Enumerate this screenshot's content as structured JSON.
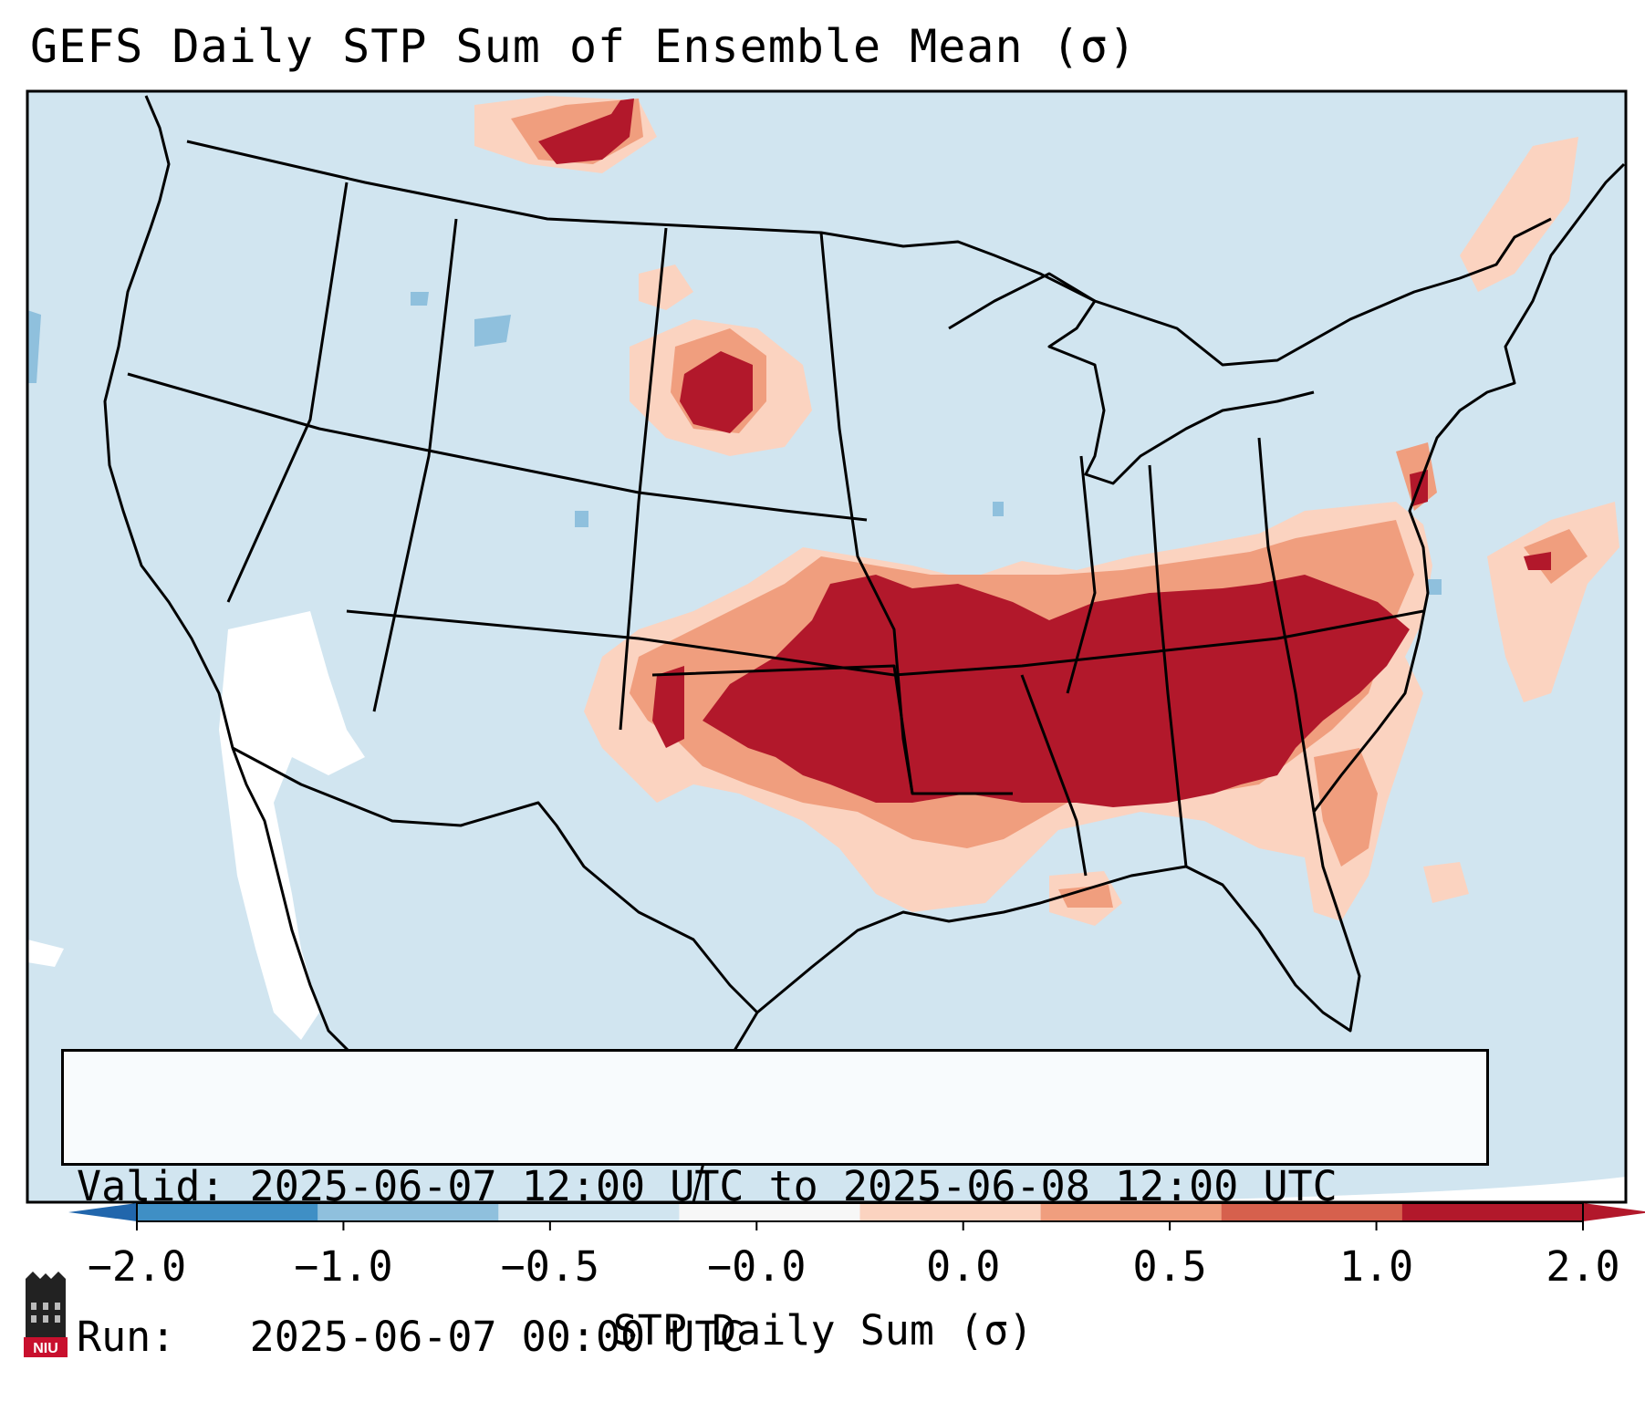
{
  "title": "GEFS Daily STP Sum of Ensemble Mean (σ)",
  "info": {
    "valid_label": "Valid:",
    "valid_value": "2025-06-07 12:00 UTC to 2025-06-08 12:00 UTC",
    "run_label": "Run:",
    "run_value": "2025-06-07 00:00 UTC"
  },
  "colorbar": {
    "label": "STP Daily Sum (σ)",
    "ticks": [
      "−2.0",
      "−1.0",
      "−0.5",
      "−0.0",
      "0.0",
      "0.5",
      "1.0",
      "2.0"
    ],
    "colors": [
      "#3f8fc5",
      "#8fc0dd",
      "#d1e5f0",
      "#f7f7f7",
      "#fbd3c0",
      "#f09e7e",
      "#d6604d",
      "#b2182b"
    ],
    "extend_low_color": "#2166ac",
    "extend_high_color": "#b2182b"
  },
  "map": {
    "region": "Continental United States",
    "background_color": "#d1e5f0",
    "ocean_edge_color": "#ffffff"
  },
  "logo": {
    "text": "NIU",
    "color": "#c8102e"
  }
}
